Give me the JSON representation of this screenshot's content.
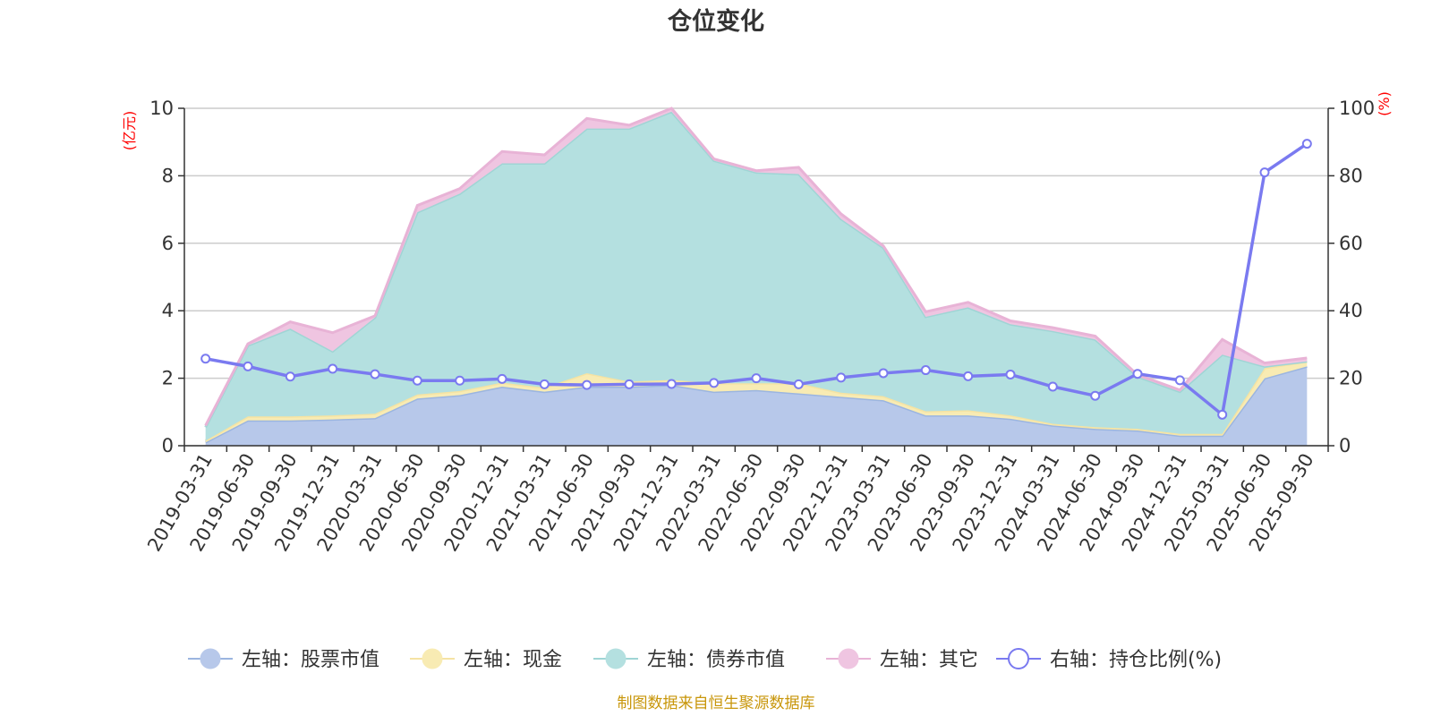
{
  "chart_data": {
    "type": "area",
    "title": "仓位变化",
    "left_axis": {
      "unit": "(亿元)",
      "range": [
        0,
        10
      ],
      "ticks": [
        0,
        2,
        4,
        6,
        8,
        10
      ]
    },
    "right_axis": {
      "unit": "(%)",
      "range": [
        0,
        100
      ],
      "ticks": [
        0,
        20,
        40,
        60,
        80,
        100
      ]
    },
    "categories": [
      "2019-03-31",
      "2019-06-30",
      "2019-09-30",
      "2019-12-31",
      "2020-03-31",
      "2020-06-30",
      "2020-09-30",
      "2020-12-31",
      "2021-03-31",
      "2021-06-30",
      "2021-09-30",
      "2021-12-31",
      "2022-03-31",
      "2022-06-30",
      "2022-09-30",
      "2022-12-31",
      "2023-03-31",
      "2023-06-30",
      "2023-09-30",
      "2023-12-31",
      "2024-03-31",
      "2024-06-30",
      "2024-09-30",
      "2024-12-31",
      "2025-03-31",
      "2025-06-30",
      "2025-09-30"
    ],
    "series": [
      {
        "name": "左轴：股票市值",
        "axis": "left",
        "kind": "area",
        "color": "#9bb5e0",
        "fill": "#b7c8ea",
        "values": [
          0.1,
          0.75,
          0.75,
          0.78,
          0.82,
          1.4,
          1.5,
          1.75,
          1.6,
          1.75,
          1.75,
          1.8,
          1.6,
          1.65,
          1.55,
          1.45,
          1.35,
          0.9,
          0.9,
          0.8,
          0.6,
          0.5,
          0.45,
          0.3,
          0.3,
          2.0,
          2.35
        ]
      },
      {
        "name": "左轴：现金",
        "axis": "left",
        "kind": "area",
        "color": "#f5e3a3",
        "fill": "#f8ebb3",
        "values": [
          0.05,
          0.12,
          0.12,
          0.12,
          0.13,
          0.12,
          0.12,
          0.12,
          0.12,
          0.4,
          0.15,
          0.15,
          0.25,
          0.2,
          0.3,
          0.12,
          0.12,
          0.12,
          0.15,
          0.1,
          0.05,
          0.05,
          0.05,
          0.05,
          0.05,
          0.3,
          0.15
        ]
      },
      {
        "name": "左轴：债券市值",
        "axis": "left",
        "kind": "area",
        "color": "#9fd5d5",
        "fill": "#b4e0e0",
        "values": [
          0.4,
          2.1,
          2.6,
          1.9,
          2.85,
          5.4,
          5.85,
          6.5,
          6.65,
          7.25,
          7.5,
          7.95,
          6.6,
          6.25,
          6.2,
          5.15,
          4.4,
          2.8,
          3.05,
          2.7,
          2.75,
          2.6,
          1.55,
          1.25,
          2.35,
          0.05,
          0.0
        ]
      },
      {
        "name": "左轴：其它",
        "axis": "left",
        "kind": "area",
        "color": "#e8b3d6",
        "fill": "#efc5e1",
        "values": [
          0.05,
          0.05,
          0.2,
          0.55,
          0.05,
          0.2,
          0.15,
          0.35,
          0.25,
          0.3,
          0.1,
          0.1,
          0.05,
          0.05,
          0.2,
          0.15,
          0.05,
          0.15,
          0.15,
          0.1,
          0.1,
          0.1,
          0.05,
          0.05,
          0.45,
          0.1,
          0.1
        ]
      },
      {
        "name": "右轴：持仓比例(%)",
        "axis": "right",
        "kind": "line",
        "color": "#7a7af0",
        "values": [
          25.8,
          23.5,
          20.5,
          22.8,
          21.2,
          19.3,
          19.3,
          19.8,
          18.2,
          18.0,
          18.2,
          18.3,
          18.6,
          20.0,
          18.2,
          20.2,
          21.5,
          22.4,
          20.6,
          21.1,
          17.5,
          14.8,
          21.3,
          19.4,
          9.2,
          81.0,
          89.5
        ]
      }
    ],
    "grid": true,
    "legend_position": "bottom",
    "source": "制图数据来自恒生聚源数据库"
  }
}
